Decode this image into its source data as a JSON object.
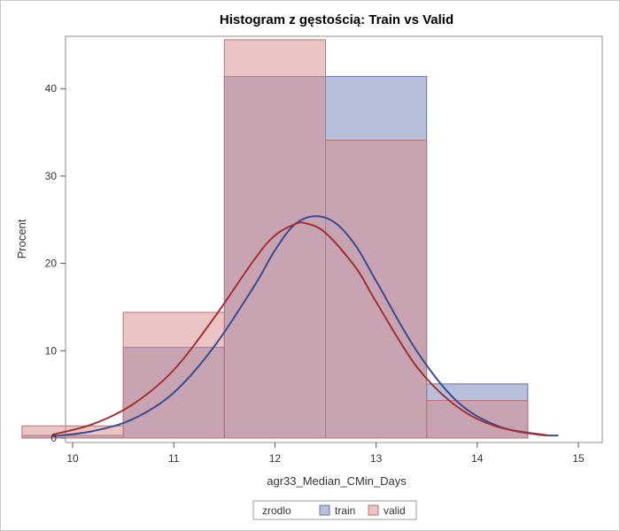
{
  "chart_data": {
    "type": "bar",
    "title": "Histogram z gęstością: Train vs Valid",
    "xlabel": "agr33_Median_CMin_Days",
    "ylabel": "Procent",
    "xlim": [
      9.75,
      15
    ],
    "ylim": [
      0,
      46
    ],
    "x_ticks": [
      10,
      11,
      12,
      13,
      14,
      15
    ],
    "y_ticks": [
      0,
      10,
      20,
      30,
      40
    ],
    "bin_width": 1,
    "bin_centers": [
      10,
      11,
      12,
      13,
      14
    ],
    "legend": {
      "title": "zrodlo",
      "placement": "bottom-center"
    },
    "series": [
      {
        "name": "train",
        "color": "#7080b8",
        "edge_color": "#6a76a8",
        "curve_color": "#3b4b8f",
        "values": [
          0.3,
          10.4,
          41.4,
          41.4,
          6.2
        ],
        "density": {
          "x": [
            9.8,
            10.2,
            10.6,
            11.0,
            11.4,
            11.8,
            12.0,
            12.2,
            12.4,
            12.6,
            12.8,
            13.0,
            13.4,
            13.8,
            14.2,
            14.6,
            14.8
          ],
          "y": [
            0.2,
            0.8,
            2.2,
            5.2,
            10.5,
            17.5,
            21.5,
            24.5,
            25.4,
            24.6,
            22.0,
            18.0,
            10.0,
            4.2,
            1.4,
            0.4,
            0.3
          ]
        }
      },
      {
        "name": "valid",
        "color": "#d98a8a",
        "edge_color": "#c07070",
        "curve_color": "#a23030",
        "values": [
          1.4,
          14.4,
          45.6,
          34.1,
          4.3
        ],
        "density": {
          "x": [
            9.8,
            10.2,
            10.6,
            11.0,
            11.4,
            11.8,
            12.0,
            12.2,
            12.3,
            12.5,
            12.8,
            13.0,
            13.4,
            13.8,
            14.2,
            14.7
          ],
          "y": [
            0.4,
            1.6,
            3.9,
            7.8,
            13.8,
            20.5,
            23.2,
            24.5,
            24.6,
            23.5,
            19.5,
            15.6,
            8.2,
            3.6,
            1.3,
            0.3
          ]
        }
      }
    ]
  }
}
